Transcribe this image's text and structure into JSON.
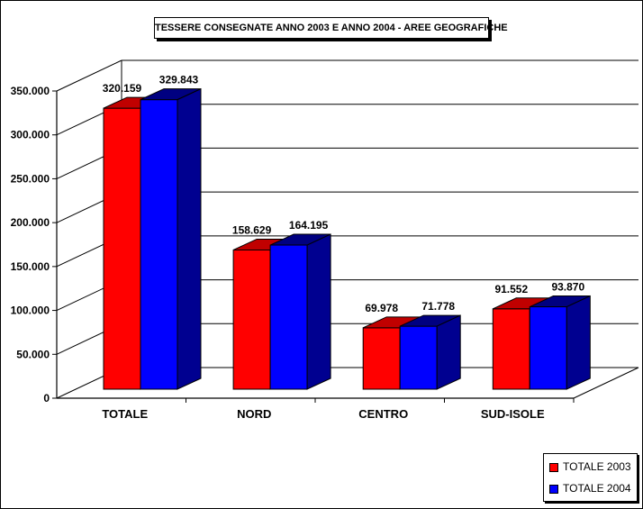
{
  "chart_data": {
    "type": "bar",
    "title": "TESSERE CONSEGNATE ANNO 2003 E ANNO 2004 - AREE GEOGRAFICHE",
    "categories": [
      "TOTALE",
      "NORD",
      "CENTRO",
      "SUD-ISOLE"
    ],
    "series": [
      {
        "name": "TOTALE 2003",
        "values": [
          320159,
          158629,
          69978,
          91552
        ],
        "labels": [
          "320.159",
          "158.629",
          "69.978",
          "91.552"
        ],
        "color": "#ff0000"
      },
      {
        "name": "TOTALE 2004",
        "values": [
          329843,
          164195,
          71778,
          93870
        ],
        "labels": [
          "329.843",
          "164.195",
          "71.778",
          "93.870"
        ],
        "color": "#0000ff"
      }
    ],
    "ylim": [
      0,
      350000
    ],
    "yticks": [
      0,
      50000,
      100000,
      150000,
      200000,
      250000,
      300000,
      350000
    ],
    "ytick_labels": [
      "0",
      "50.000",
      "100.000",
      "150.000",
      "200.000",
      "250.000",
      "300.000",
      "350.000"
    ],
    "grid": true,
    "legend_position": "bottom-right",
    "style": "3d-clustered-column"
  },
  "legend": {
    "items": [
      {
        "label": "TOTALE 2003",
        "color": "#ff0000"
      },
      {
        "label": "TOTALE 2004",
        "color": "#0000ff"
      }
    ]
  }
}
